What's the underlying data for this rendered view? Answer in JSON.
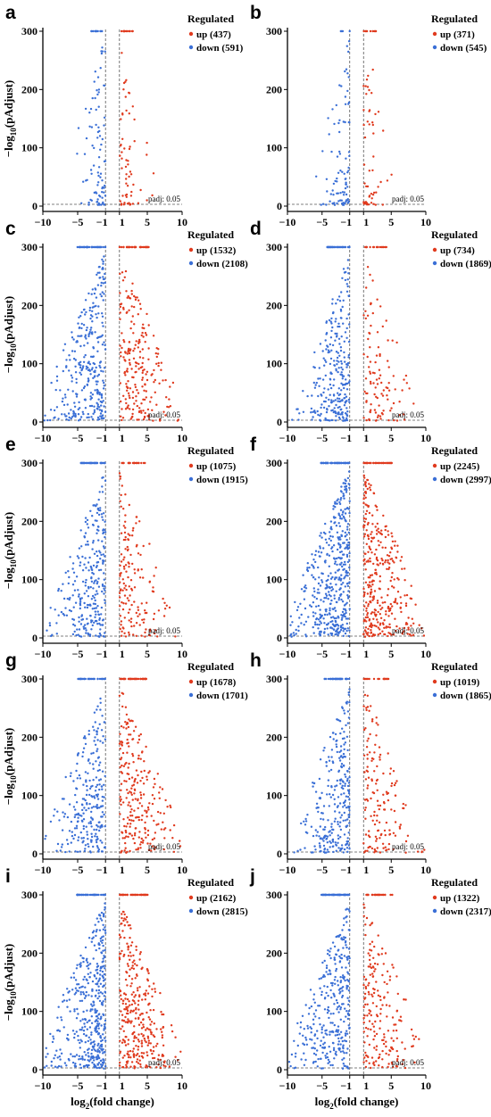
{
  "figure": {
    "y_axis_title": "−log10(pAdjust)",
    "x_axis_title": "log2(fold change)",
    "legend_title": "Regulated",
    "padj_label": "padj: 0.05",
    "colors": {
      "up": "#e03a1e",
      "down": "#3a6fd6"
    }
  },
  "chart_data": [
    {
      "type": "scatter",
      "panel": "a",
      "xlim": [
        -10,
        10
      ],
      "ylim": [
        0,
        300
      ],
      "xticks": [
        -10,
        -5,
        -1,
        1,
        5,
        10
      ],
      "xtick_labels": [
        "−10",
        "−5",
        "−1",
        "1",
        "5",
        "10"
      ],
      "yticks": [
        0,
        100,
        200,
        300
      ],
      "thresholds": {
        "x": [
          -1,
          1
        ],
        "padj": 0.05
      },
      "series": [
        {
          "name": "up",
          "count": 437
        },
        {
          "name": "down",
          "count": 591
        }
      ],
      "legend_entries": [
        "up (437)",
        "down (591)"
      ]
    },
    {
      "type": "scatter",
      "panel": "b",
      "xlim": [
        -10,
        10
      ],
      "ylim": [
        0,
        300
      ],
      "xticks": [
        -10,
        -5,
        -1,
        1,
        5,
        10
      ],
      "xtick_labels": [
        "−10",
        "−5",
        "−1",
        "1",
        "5",
        "10"
      ],
      "yticks": [
        0,
        100,
        200,
        300
      ],
      "thresholds": {
        "x": [
          -1,
          1
        ],
        "padj": 0.05
      },
      "series": [
        {
          "name": "up",
          "count": 371
        },
        {
          "name": "down",
          "count": 545
        }
      ],
      "legend_entries": [
        "up (371)",
        "down (545)"
      ]
    },
    {
      "type": "scatter",
      "panel": "c",
      "xlim": [
        -10,
        10
      ],
      "ylim": [
        0,
        300
      ],
      "xticks": [
        -10,
        -5,
        -1,
        1,
        5,
        10
      ],
      "xtick_labels": [
        "−10",
        "−5",
        "−1",
        "1",
        "5",
        "10"
      ],
      "yticks": [
        0,
        100,
        200,
        300
      ],
      "thresholds": {
        "x": [
          -1,
          1
        ],
        "padj": 0.05
      },
      "series": [
        {
          "name": "up",
          "count": 1532
        },
        {
          "name": "down",
          "count": 2108
        }
      ],
      "legend_entries": [
        "up (1532)",
        "down (2108)"
      ]
    },
    {
      "type": "scatter",
      "panel": "d",
      "xlim": [
        -10,
        10
      ],
      "ylim": [
        0,
        300
      ],
      "xticks": [
        -10,
        -5,
        -1,
        1,
        5,
        10
      ],
      "xtick_labels": [
        "−10",
        "−5",
        "−1",
        "1",
        "5",
        "10"
      ],
      "yticks": [
        0,
        100,
        200,
        300
      ],
      "thresholds": {
        "x": [
          -1,
          1
        ],
        "padj": 0.05
      },
      "series": [
        {
          "name": "up",
          "count": 734
        },
        {
          "name": "down",
          "count": 1869
        }
      ],
      "legend_entries": [
        "up (734)",
        "down (1869)"
      ]
    },
    {
      "type": "scatter",
      "panel": "e",
      "xlim": [
        -10,
        10
      ],
      "ylim": [
        0,
        300
      ],
      "xticks": [
        -10,
        -5,
        -1,
        1,
        5,
        10
      ],
      "xtick_labels": [
        "−10",
        "−5",
        "−1",
        "1",
        "5",
        "10"
      ],
      "yticks": [
        0,
        100,
        200,
        300
      ],
      "thresholds": {
        "x": [
          -1,
          1
        ],
        "padj": 0.05
      },
      "series": [
        {
          "name": "up",
          "count": 1075
        },
        {
          "name": "down",
          "count": 1915
        }
      ],
      "legend_entries": [
        "up (1075)",
        "down (1915)"
      ]
    },
    {
      "type": "scatter",
      "panel": "f",
      "xlim": [
        -10,
        10
      ],
      "ylim": [
        0,
        300
      ],
      "xticks": [
        -10,
        -5,
        -1,
        1,
        5,
        10
      ],
      "xtick_labels": [
        "−10",
        "−5",
        "−1",
        "1",
        "5",
        "10"
      ],
      "yticks": [
        0,
        100,
        200,
        300
      ],
      "thresholds": {
        "x": [
          -1,
          1
        ],
        "padj": 0.05
      },
      "series": [
        {
          "name": "up",
          "count": 2245
        },
        {
          "name": "down",
          "count": 2997
        }
      ],
      "legend_entries": [
        "up (2245)",
        "down (2997)"
      ]
    },
    {
      "type": "scatter",
      "panel": "g",
      "xlim": [
        -10,
        10
      ],
      "ylim": [
        0,
        300
      ],
      "xticks": [
        -10,
        -5,
        -1,
        1,
        5,
        10
      ],
      "xtick_labels": [
        "−10",
        "−5",
        "−1",
        "1",
        "5",
        "10"
      ],
      "yticks": [
        0,
        100,
        200,
        300
      ],
      "thresholds": {
        "x": [
          -1,
          1
        ],
        "padj": 0.05
      },
      "series": [
        {
          "name": "up",
          "count": 1678
        },
        {
          "name": "down",
          "count": 1701
        }
      ],
      "legend_entries": [
        "up (1678)",
        "down (1701)"
      ]
    },
    {
      "type": "scatter",
      "panel": "h",
      "xlim": [
        -10,
        10
      ],
      "ylim": [
        0,
        300
      ],
      "xticks": [
        -10,
        -5,
        -1,
        1,
        5,
        10
      ],
      "xtick_labels": [
        "−10",
        "−5",
        "−1",
        "1",
        "5",
        "10"
      ],
      "yticks": [
        0,
        100,
        200,
        300
      ],
      "thresholds": {
        "x": [
          -1,
          1
        ],
        "padj": 0.05
      },
      "series": [
        {
          "name": "up",
          "count": 1019
        },
        {
          "name": "down",
          "count": 1865
        }
      ],
      "legend_entries": [
        "up (1019)",
        "down (1865)"
      ]
    },
    {
      "type": "scatter",
      "panel": "i",
      "xlim": [
        -10,
        10
      ],
      "ylim": [
        0,
        300
      ],
      "xticks": [
        -10,
        -5,
        -1,
        1,
        5,
        10
      ],
      "xtick_labels": [
        "−10",
        "−5",
        "−1",
        "1",
        "5",
        "10"
      ],
      "yticks": [
        0,
        100,
        200,
        300
      ],
      "thresholds": {
        "x": [
          -1,
          1
        ],
        "padj": 0.05
      },
      "series": [
        {
          "name": "up",
          "count": 2162
        },
        {
          "name": "down",
          "count": 2815
        }
      ],
      "legend_entries": [
        "up (2162)",
        "down (2815)"
      ]
    },
    {
      "type": "scatter",
      "panel": "j",
      "xlim": [
        -10,
        10
      ],
      "ylim": [
        0,
        300
      ],
      "xticks": [
        -10,
        -5,
        -1,
        1,
        5,
        10
      ],
      "xtick_labels": [
        "−10",
        "−5",
        "−1",
        "1",
        "5",
        "10"
      ],
      "yticks": [
        0,
        100,
        200,
        300
      ],
      "thresholds": {
        "x": [
          -1,
          1
        ],
        "padj": 0.05
      },
      "series": [
        {
          "name": "up",
          "count": 1322
        },
        {
          "name": "down",
          "count": 2317
        }
      ],
      "legend_entries": [
        "up (1322)",
        "down (2317)"
      ]
    }
  ]
}
